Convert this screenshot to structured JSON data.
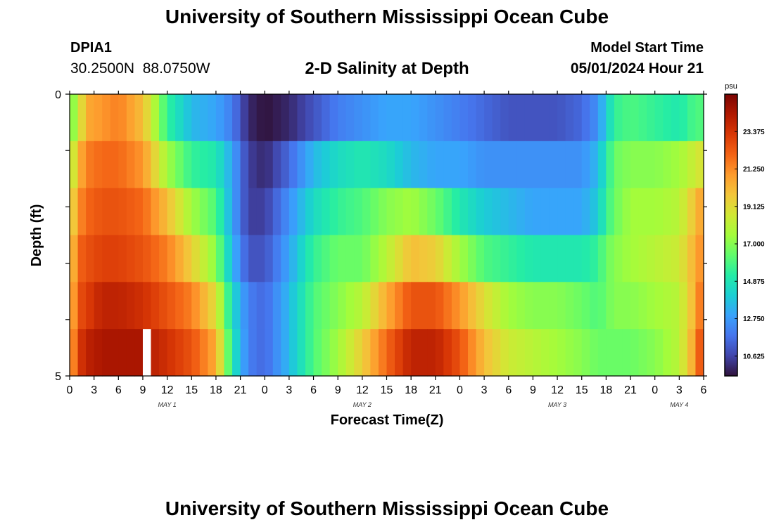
{
  "header": {
    "title": "University of Southern Mississippi Ocean Cube",
    "station_id": "DPIA1",
    "station_coords": "30.2500N  88.0750W",
    "subtitle": "2-D Salinity at Depth",
    "model_start_label": "Model Start Time",
    "model_start_value": "05/01/2024 Hour 21",
    "footer_title": "University of Southern Mississippi Ocean Cube"
  },
  "chart_data": {
    "type": "heatmap",
    "title": "2-D Salinity at Depth",
    "xlabel": "Forecast Time(Z)",
    "ylabel": "Depth (ft)",
    "x_start": "2024-05-01 00Z",
    "x_step_hours": 1,
    "x_range_hours": [
      0,
      78
    ],
    "x_tick_labels": [
      "0",
      "3",
      "6",
      "9",
      "12",
      "15",
      "18",
      "21",
      "0",
      "3",
      "6",
      "9",
      "12",
      "15",
      "18",
      "21",
      "0",
      "3",
      "6",
      "9",
      "12",
      "15",
      "18",
      "21",
      "0",
      "3",
      "6"
    ],
    "day_labels": [
      "MAY 1",
      "MAY 2",
      "MAY 3",
      "MAY 4"
    ],
    "y_tick_labels": [
      "0",
      "5"
    ],
    "y_range": [
      0,
      5
    ],
    "depth_levels_ft": [
      0,
      1,
      2,
      3,
      4,
      5
    ],
    "colorbar": {
      "unit": "psu",
      "min": 9.5,
      "max": 25.5,
      "tick_labels": [
        "23.375",
        "21.250",
        "19.125",
        "17.000",
        "14.875",
        "12.750",
        "10.625"
      ],
      "colors": [
        "#30123b",
        "#4145ab",
        "#4675ed",
        "#39a2fc",
        "#1bcfd4",
        "#24eca6",
        "#61fc6c",
        "#a4fc3b",
        "#d1e834",
        "#f3c63a",
        "#fe9b2d",
        "#f36315",
        "#d93806",
        "#b11901",
        "#7a0403"
      ]
    },
    "keyframes_hours": [
      0,
      1,
      2,
      4,
      6,
      9,
      12,
      15,
      18,
      20,
      22,
      24,
      27,
      30,
      33,
      36,
      39,
      42,
      45,
      48,
      51,
      54,
      57,
      60,
      63,
      65,
      66,
      67,
      69,
      72,
      75,
      77,
      78
    ],
    "keyframes_psu": [
      [
        16.5,
        18.0,
        20.5,
        21.0,
        21.5,
        20.0,
        15.5,
        13.5,
        13.0,
        12.0,
        10.0,
        9.5,
        10.0,
        11.0,
        12.0,
        12.5,
        13.0,
        13.0,
        12.5,
        12.0,
        11.5,
        11.0,
        11.0,
        11.0,
        11.5,
        12.5,
        14.0,
        15.5,
        16.0,
        15.5,
        15.0,
        16.0,
        16.0
      ],
      [
        17.5,
        20.0,
        21.5,
        22.0,
        22.0,
        21.0,
        17.5,
        15.5,
        15.0,
        13.0,
        10.5,
        10.0,
        11.5,
        13.5,
        14.5,
        15.0,
        14.5,
        13.5,
        13.0,
        13.0,
        12.5,
        12.5,
        12.5,
        12.5,
        12.5,
        13.5,
        15.0,
        16.5,
        17.0,
        17.0,
        17.5,
        18.5,
        19.0
      ],
      [
        18.5,
        21.0,
        22.0,
        22.5,
        22.5,
        22.0,
        20.0,
        17.5,
        16.0,
        13.0,
        10.5,
        10.5,
        12.5,
        14.5,
        15.5,
        16.0,
        17.0,
        17.5,
        16.5,
        15.0,
        14.0,
        13.5,
        13.0,
        13.0,
        13.0,
        14.0,
        15.5,
        16.5,
        17.5,
        17.5,
        18.0,
        20.0,
        21.0
      ],
      [
        19.0,
        22.0,
        22.5,
        23.0,
        23.0,
        22.5,
        21.5,
        19.5,
        17.0,
        13.5,
        11.0,
        11.0,
        13.0,
        15.5,
        16.5,
        16.5,
        18.0,
        20.0,
        19.5,
        17.5,
        16.0,
        15.5,
        15.0,
        15.0,
        15.0,
        15.5,
        16.5,
        17.0,
        17.5,
        18.0,
        18.5,
        20.5,
        21.5
      ],
      [
        19.5,
        22.5,
        23.0,
        24.0,
        24.0,
        23.5,
        22.5,
        21.5,
        19.0,
        14.5,
        12.0,
        11.5,
        13.5,
        16.0,
        17.0,
        18.0,
        20.5,
        22.5,
        22.5,
        21.0,
        19.0,
        17.5,
        17.0,
        17.0,
        16.5,
        16.0,
        16.5,
        17.0,
        17.0,
        17.5,
        18.0,
        20.5,
        22.5
      ],
      [
        20.0,
        23.0,
        24.0,
        24.5,
        24.5,
        24.5,
        23.5,
        22.5,
        20.5,
        15.0,
        12.0,
        11.5,
        13.5,
        16.0,
        17.5,
        19.5,
        22.0,
        24.0,
        24.0,
        22.5,
        20.0,
        18.5,
        18.0,
        17.5,
        17.0,
        16.5,
        16.5,
        16.5,
        16.5,
        17.0,
        18.0,
        21.0,
        23.5
      ]
    ],
    "missing_cells": [
      {
        "depth_index": 5,
        "hour": 9
      }
    ]
  }
}
